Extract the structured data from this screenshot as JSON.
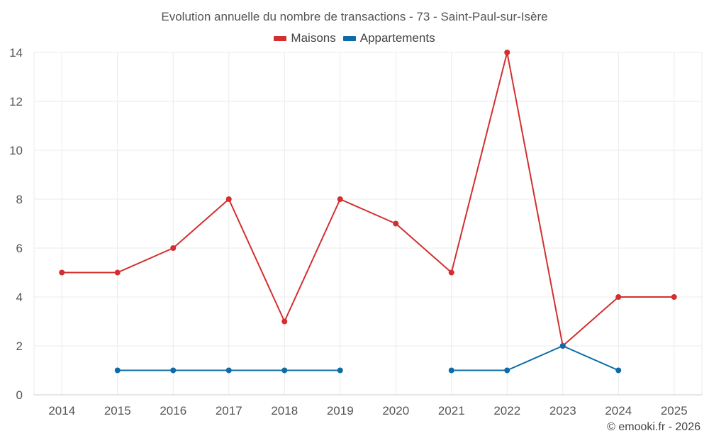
{
  "colors": {
    "maisons": "#d32f2f",
    "appartements": "#0e6ba8",
    "grid": "#ebebeb",
    "axis": "#cccccc"
  },
  "chart_data": {
    "type": "line",
    "title": "Evolution annuelle du nombre de transactions - 73 - Saint-Paul-sur-Isère",
    "xlabel": "",
    "ylabel": "",
    "categories": [
      "2014",
      "2015",
      "2016",
      "2017",
      "2018",
      "2019",
      "2020",
      "2021",
      "2022",
      "2023",
      "2024",
      "2025"
    ],
    "ylim": [
      0,
      14
    ],
    "yticks": [
      "0",
      "2",
      "4",
      "6",
      "8",
      "10",
      "12",
      "14"
    ],
    "grid": true,
    "legend_position": "top-center",
    "series": [
      {
        "name": "Maisons",
        "color": "#d32f2f",
        "values": [
          5,
          5,
          6,
          8,
          3,
          8,
          7,
          5,
          14,
          2,
          4,
          4
        ]
      },
      {
        "name": "Appartements",
        "color": "#0e6ba8",
        "values": [
          null,
          1,
          1,
          1,
          1,
          1,
          null,
          1,
          1,
          2,
          1,
          null
        ]
      }
    ]
  },
  "credit": "© emooki.fr - 2026"
}
